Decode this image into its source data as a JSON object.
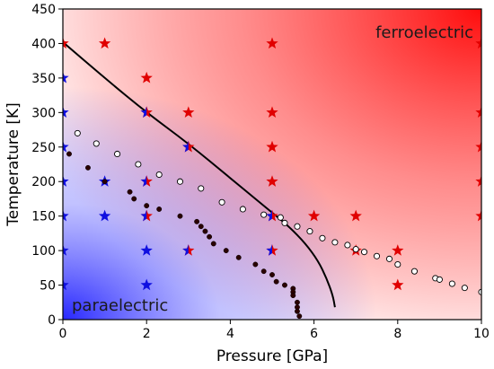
{
  "chart_data": {
    "type": "scatter",
    "xlabel": "Pressure [GPa]",
    "ylabel": "Temperature [K]",
    "xlim": [
      0,
      10
    ],
    "ylim": [
      0,
      450
    ],
    "xticks": [
      "0",
      "2",
      "4",
      "6",
      "8",
      "10"
    ],
    "yticks": [
      "0",
      "50",
      "100",
      "150",
      "200",
      "250",
      "300",
      "350",
      "400",
      "450"
    ],
    "grid": false,
    "annotations": {
      "top_right": "ferroelectric",
      "bottom_left": "paraelectric"
    },
    "colors": {
      "ferro": "#e00000",
      "para": "#1010e0",
      "ferro_gradient": "#ff0000",
      "para_gradient": "#0000ff"
    },
    "series": [
      {
        "marker": "red-star",
        "points": [
          [
            0,
            400
          ],
          [
            1,
            400
          ],
          [
            2,
            350
          ],
          [
            3,
            300
          ],
          [
            5,
            400
          ],
          [
            5,
            300
          ],
          [
            5,
            250
          ],
          [
            5,
            200
          ],
          [
            6,
            150
          ],
          [
            7,
            150
          ],
          [
            7,
            100
          ],
          [
            8,
            100
          ],
          [
            8,
            50
          ],
          [
            10,
            400
          ],
          [
            10,
            300
          ],
          [
            10,
            250
          ],
          [
            10,
            200
          ],
          [
            10,
            150
          ]
        ]
      },
      {
        "marker": "blue-star",
        "points": [
          [
            0,
            350
          ],
          [
            0,
            300
          ],
          [
            0,
            250
          ],
          [
            0,
            200
          ],
          [
            0,
            150
          ],
          [
            0,
            100
          ],
          [
            0,
            50
          ],
          [
            1,
            200
          ],
          [
            1,
            150
          ],
          [
            2,
            100
          ],
          [
            2,
            50
          ]
        ]
      },
      {
        "marker": "split-star",
        "points": [
          [
            2,
            300
          ],
          [
            2,
            200
          ],
          [
            2,
            150
          ],
          [
            3,
            250
          ],
          [
            3,
            100
          ],
          [
            5,
            150
          ],
          [
            5,
            100
          ]
        ]
      },
      {
        "marker": "open-circle",
        "points": [
          [
            0.35,
            270
          ],
          [
            0.8,
            255
          ],
          [
            1.3,
            240
          ],
          [
            1.8,
            225
          ],
          [
            2.3,
            210
          ],
          [
            2.8,
            200
          ],
          [
            3.3,
            190
          ],
          [
            3.8,
            170
          ],
          [
            4.3,
            160
          ],
          [
            4.8,
            152
          ],
          [
            5.2,
            148
          ],
          [
            5.3,
            140
          ],
          [
            5.6,
            135
          ],
          [
            5.9,
            128
          ],
          [
            6.2,
            118
          ],
          [
            6.5,
            112
          ],
          [
            6.8,
            108
          ],
          [
            7.0,
            102
          ],
          [
            7.2,
            98
          ],
          [
            7.5,
            92
          ],
          [
            7.8,
            88
          ],
          [
            8.0,
            80
          ],
          [
            8.4,
            70
          ],
          [
            8.9,
            60
          ],
          [
            9.0,
            58
          ],
          [
            9.3,
            52
          ],
          [
            9.6,
            46
          ],
          [
            10,
            40
          ]
        ]
      },
      {
        "marker": "filled-circle",
        "points": [
          [
            0.15,
            240
          ],
          [
            0.6,
            220
          ],
          [
            1.0,
            200
          ],
          [
            1.6,
            185
          ],
          [
            1.7,
            175
          ],
          [
            2.0,
            165
          ],
          [
            2.3,
            160
          ],
          [
            2.8,
            150
          ],
          [
            3.2,
            142
          ],
          [
            3.3,
            135
          ],
          [
            3.4,
            128
          ],
          [
            3.5,
            120
          ],
          [
            3.6,
            110
          ],
          [
            3.9,
            100
          ],
          [
            4.2,
            90
          ],
          [
            4.6,
            80
          ],
          [
            4.8,
            70
          ],
          [
            5.0,
            65
          ],
          [
            5.1,
            55
          ],
          [
            5.3,
            50
          ],
          [
            5.5,
            45
          ],
          [
            5.5,
            40
          ],
          [
            5.5,
            35
          ],
          [
            5.6,
            25
          ],
          [
            5.6,
            18
          ],
          [
            5.6,
            12
          ],
          [
            5.65,
            5
          ]
        ]
      }
    ],
    "boundary_line": [
      [
        0,
        402
      ],
      [
        1,
        350
      ],
      [
        2,
        300
      ],
      [
        3,
        255
      ],
      [
        4,
        205
      ],
      [
        4.5,
        180
      ],
      [
        5.0,
        155
      ],
      [
        5.4,
        135
      ],
      [
        5.8,
        110
      ],
      [
        6.1,
        85
      ],
      [
        6.3,
        60
      ],
      [
        6.45,
        35
      ],
      [
        6.5,
        18
      ]
    ]
  }
}
